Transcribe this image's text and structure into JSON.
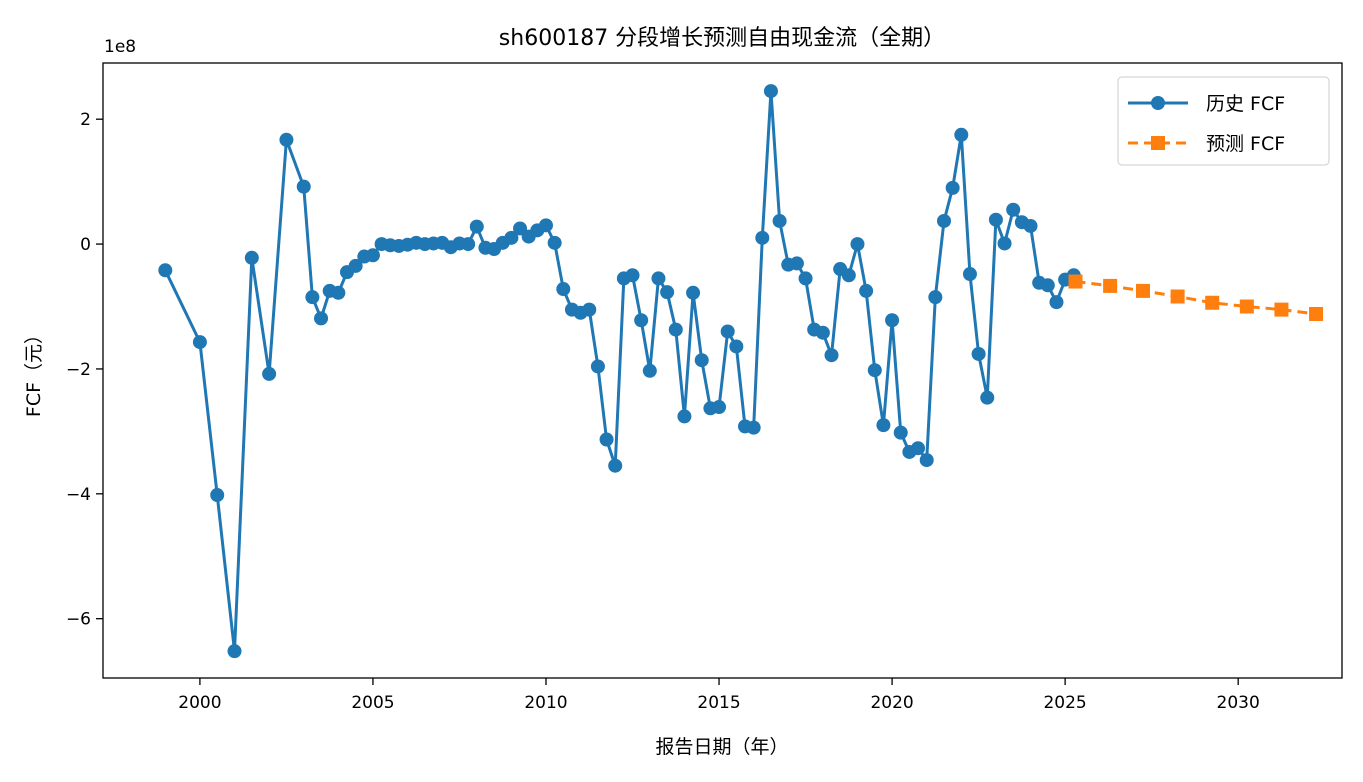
{
  "chart_data": {
    "type": "line",
    "title": "sh600187 分段增长预测自由现金流（全期）",
    "xlabel": "报告日期（年）",
    "ylabel": "FCF（元）",
    "y_multiplier_label": "1e8",
    "xlim": [
      1997.2,
      2033.0
    ],
    "ylim": [
      -6.95,
      2.9
    ],
    "x_ticks": [
      2000,
      2005,
      2010,
      2015,
      2020,
      2025,
      2030
    ],
    "y_ticks": [
      -6,
      -4,
      -2,
      0,
      2
    ],
    "legend_position": "top-right",
    "grid": false,
    "colors": {
      "history": "#1f77b4",
      "forecast": "#ff7f0e"
    },
    "series": [
      {
        "name": "历史 FCF",
        "style": "solid",
        "marker": "circle",
        "x": [
          1999.0,
          2000.0,
          2000.5,
          2001.0,
          2001.5,
          2002.0,
          2002.5,
          2003.0,
          2003.25,
          2003.5,
          2003.75,
          2004.0,
          2004.25,
          2004.5,
          2004.75,
          2005.0,
          2005.25,
          2005.5,
          2005.75,
          2006.0,
          2006.25,
          2006.5,
          2006.75,
          2007.0,
          2007.25,
          2007.5,
          2007.75,
          2008.0,
          2008.25,
          2008.5,
          2008.75,
          2009.0,
          2009.25,
          2009.5,
          2009.75,
          2010.0,
          2010.25,
          2010.5,
          2010.75,
          2011.0,
          2011.25,
          2011.5,
          2011.75,
          2012.0,
          2012.25,
          2012.5,
          2012.75,
          2013.0,
          2013.25,
          2013.5,
          2013.75,
          2014.0,
          2014.25,
          2014.5,
          2014.75,
          2015.0,
          2015.25,
          2015.5,
          2015.75,
          2016.0,
          2016.25,
          2016.5,
          2016.75,
          2017.0,
          2017.25,
          2017.5,
          2017.75,
          2018.0,
          2018.25,
          2018.5,
          2018.75,
          2019.0,
          2019.25,
          2019.5,
          2019.75,
          2020.0,
          2020.25,
          2020.5,
          2020.75,
          2021.0,
          2021.25,
          2021.5,
          2021.75,
          2022.0,
          2022.25,
          2022.5,
          2022.75,
          2023.0,
          2023.25,
          2023.5,
          2023.75,
          2024.0,
          2024.25,
          2024.5,
          2024.75,
          2025.0,
          2025.25
        ],
        "y": [
          -0.42,
          -1.57,
          -4.02,
          -6.52,
          -0.22,
          -2.08,
          1.67,
          0.92,
          -0.85,
          -1.19,
          -0.75,
          -0.78,
          -0.45,
          -0.35,
          -0.2,
          -0.18,
          0.0,
          -0.02,
          -0.03,
          -0.01,
          0.02,
          0.0,
          0.01,
          0.02,
          -0.05,
          0.01,
          0.0,
          0.28,
          -0.06,
          -0.08,
          0.02,
          0.1,
          0.25,
          0.12,
          0.22,
          0.3,
          0.02,
          -0.72,
          -1.05,
          -1.1,
          -1.05,
          -1.96,
          -3.13,
          -3.55,
          -0.55,
          -0.5,
          -1.22,
          -2.03,
          -0.55,
          -0.77,
          -1.37,
          -2.76,
          -0.78,
          -1.86,
          -2.63,
          -2.61,
          -1.4,
          -1.64,
          -2.92,
          -2.94,
          0.1,
          2.45,
          0.37,
          -0.33,
          -0.31,
          -0.55,
          -1.37,
          -1.42,
          -1.78,
          -0.4,
          -0.5,
          0.0,
          -0.75,
          -2.02,
          -2.9,
          -1.22,
          -3.02,
          -3.33,
          -3.27,
          -3.46,
          -0.85,
          0.37,
          0.9,
          1.75,
          -0.48,
          -1.76,
          -2.46,
          0.39,
          0.01,
          0.55,
          0.35,
          0.29,
          -0.62,
          -0.66,
          -0.93,
          -0.57,
          -0.5
        ]
      },
      {
        "name": "预测 FCF",
        "style": "dashed",
        "marker": "square",
        "x": [
          2025.3,
          2026.3,
          2027.25,
          2028.25,
          2029.25,
          2030.25,
          2031.25,
          2032.25
        ],
        "y": [
          -0.6,
          -0.67,
          -0.75,
          -0.84,
          -0.94,
          -1.0,
          -1.05,
          -1.12
        ]
      }
    ]
  }
}
